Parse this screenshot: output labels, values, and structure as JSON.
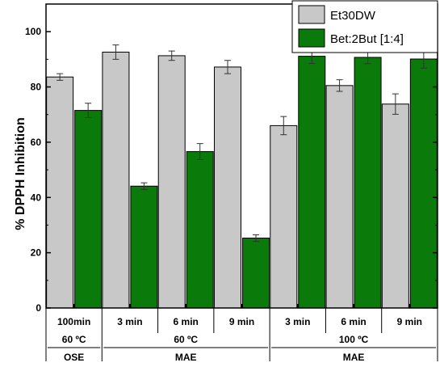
{
  "chart_data": {
    "type": "bar",
    "title": "",
    "ylabel": "% DPPH Inhibition",
    "ylim": [
      0,
      110
    ],
    "yticks": [
      0,
      20,
      40,
      60,
      80,
      100
    ],
    "grid": false,
    "legend_position": "top-right",
    "categories": [
      "100min",
      "3 min",
      "6 min",
      "9 min",
      "3 min",
      "6 min",
      "9 min"
    ],
    "groups": [
      {
        "label_lines": [
          "60 ºC",
          "OSE"
        ],
        "span": [
          0,
          0
        ]
      },
      {
        "label_lines": [
          "60 ºC",
          "MAE"
        ],
        "span": [
          1,
          3
        ]
      },
      {
        "label_lines": [
          "100 ºC",
          "MAE"
        ],
        "span": [
          4,
          6
        ]
      }
    ],
    "series": [
      {
        "name": "Et30DW",
        "color": "#c8c8c8",
        "values": [
          83.6,
          92.6,
          91.3,
          87.2,
          66.0,
          80.5,
          73.8
        ],
        "errors": [
          1.2,
          2.6,
          1.7,
          2.4,
          3.3,
          2.1,
          3.7
        ]
      },
      {
        "name": "Bet:2But [1:4]",
        "color": "#0a7a0a",
        "values": [
          71.5,
          44.1,
          56.6,
          25.3,
          91.1,
          90.7,
          90.1
        ],
        "errors": [
          2.6,
          1.2,
          2.9,
          1.2,
          2.6,
          2.3,
          3.3
        ]
      }
    ]
  }
}
